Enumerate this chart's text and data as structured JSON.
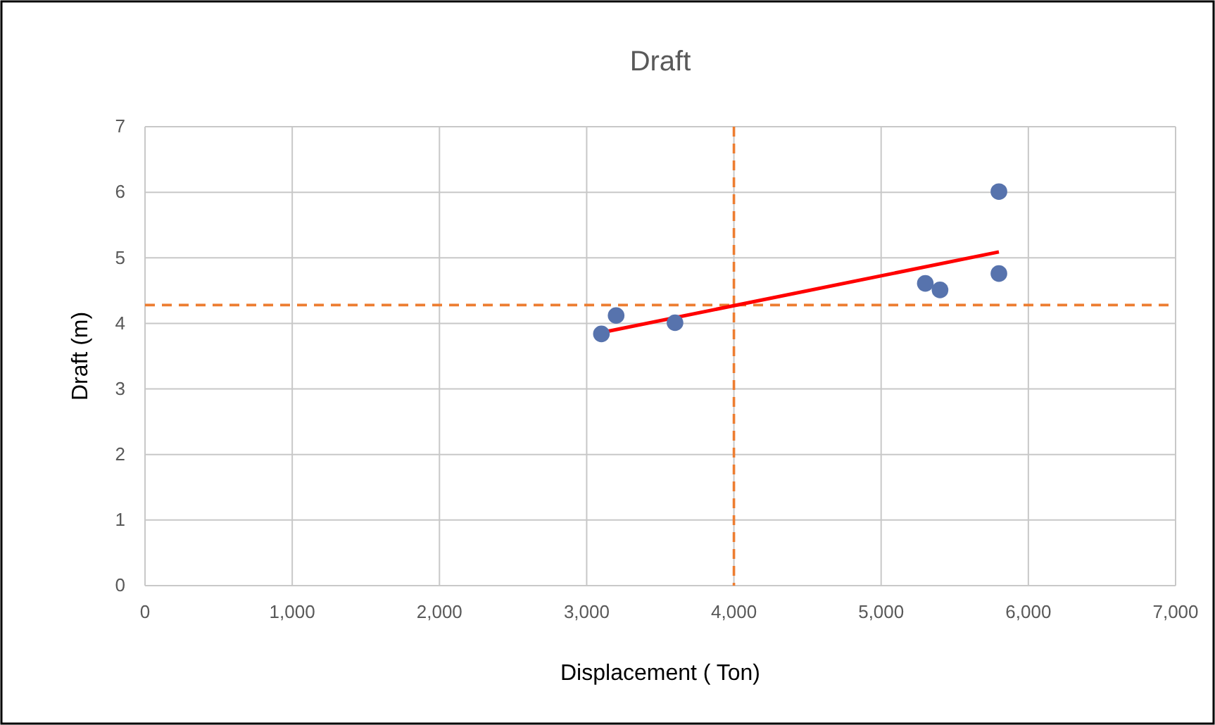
{
  "chart_data": {
    "type": "scatter",
    "title": "Draft",
    "xlabel": "Displacement ( Ton)",
    "ylabel": "Draft (m)",
    "xlim": [
      0,
      7000
    ],
    "ylim": [
      0,
      7
    ],
    "xticks": [
      {
        "value": 0,
        "label": "0"
      },
      {
        "value": 1000,
        "label": "1,000"
      },
      {
        "value": 2000,
        "label": "2,000"
      },
      {
        "value": 3000,
        "label": "3,000"
      },
      {
        "value": 4000,
        "label": "4,000"
      },
      {
        "value": 5000,
        "label": "5,000"
      },
      {
        "value": 6000,
        "label": "6,000"
      },
      {
        "value": 7000,
        "label": "7,000"
      }
    ],
    "yticks": [
      0,
      1,
      2,
      3,
      4,
      5,
      6,
      7
    ],
    "grid": true,
    "series": [
      {
        "marker": "circle",
        "color": "#5773ad",
        "x": [
          3100,
          3200,
          3600,
          5300,
          5400,
          5800,
          5800
        ],
        "values": [
          3.84,
          4.12,
          4.01,
          4.61,
          4.51,
          6.01,
          4.76
        ]
      },
      {
        "type": "line",
        "marker": "none",
        "color": "#ff0000",
        "x": [
          3100,
          5800
        ],
        "values": [
          3.86,
          5.09
        ]
      }
    ],
    "ref_lines": [
      {
        "axis": "y",
        "value": 4.28,
        "color": "#ed7d31",
        "line_style": "dashed"
      },
      {
        "axis": "x",
        "value": 4000,
        "color": "#ed7d31",
        "line_style": "dashed"
      }
    ]
  }
}
